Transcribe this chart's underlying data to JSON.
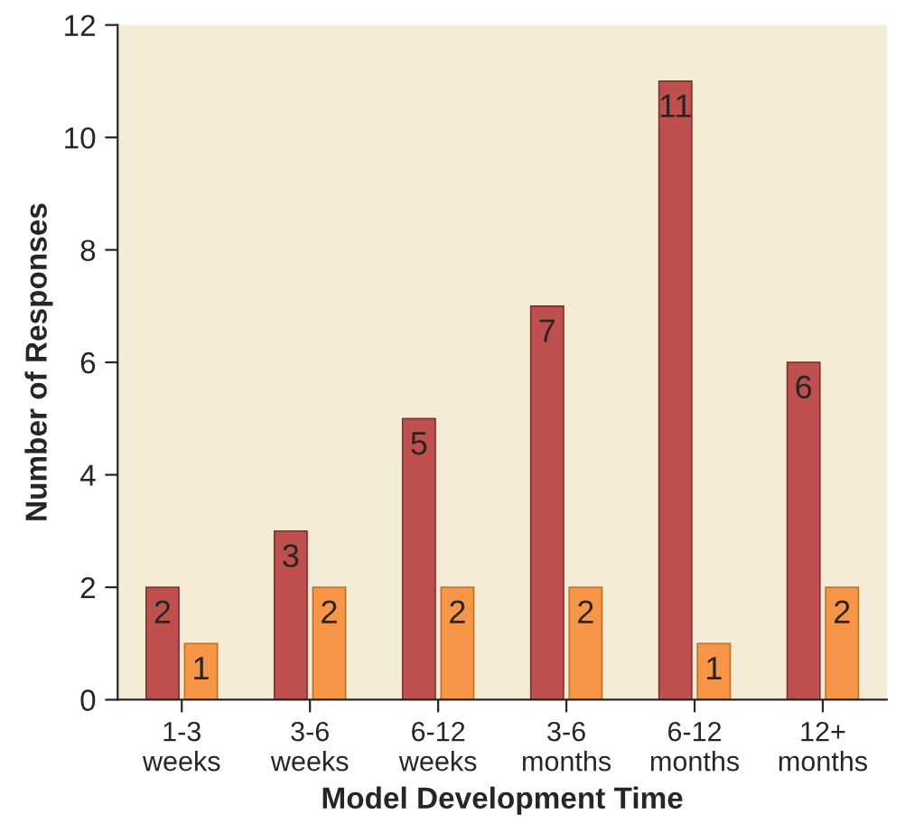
{
  "chart_data": {
    "type": "bar",
    "xlabel": "Model Development Time",
    "ylabel": "Number of Responses",
    "categories": [
      "1-3\nweeks",
      "3-6\nweeks",
      "6-12\nweeks",
      "3-6\nmonths",
      "6-12\nmonths",
      "12+\nmonths"
    ],
    "series": [
      {
        "color": "#c0504d",
        "values": [
          2,
          3,
          5,
          7,
          11,
          6
        ]
      },
      {
        "color": "#f79646",
        "values": [
          1,
          2,
          2,
          2,
          1,
          2
        ]
      }
    ],
    "ylim": [
      0,
      12
    ],
    "yticks": [
      0,
      2,
      4,
      6,
      8,
      10,
      12
    ],
    "data_labels": true,
    "grid": false,
    "legend": false
  }
}
